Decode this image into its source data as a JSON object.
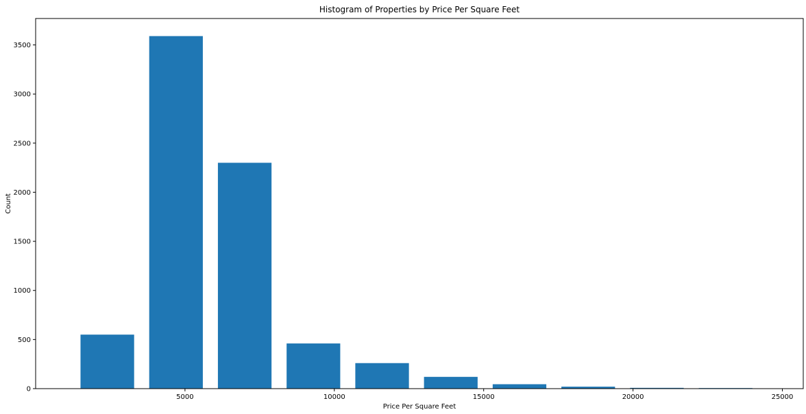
{
  "chart_data": {
    "type": "bar",
    "title": "Histogram of Properties by Price Per Square Feet",
    "xlabel": "Price Per Square Feet",
    "ylabel": "Count",
    "bin_edges": [
      1250,
      3550,
      5850,
      8150,
      10450,
      12750,
      15050,
      17350,
      19650,
      21950,
      24250
    ],
    "values": [
      550,
      3590,
      2300,
      460,
      260,
      120,
      45,
      20,
      8,
      6
    ],
    "xlim": [
      0,
      25700
    ],
    "ylim": [
      0,
      3769
    ],
    "xticks": [
      "5000",
      "10000",
      "15000",
      "20000",
      "25000"
    ],
    "yticks": [
      "0",
      "500",
      "1000",
      "1500",
      "2000",
      "2500",
      "3000",
      "3500"
    ],
    "color": "#1f77b4",
    "grid": false,
    "legend": "none"
  }
}
